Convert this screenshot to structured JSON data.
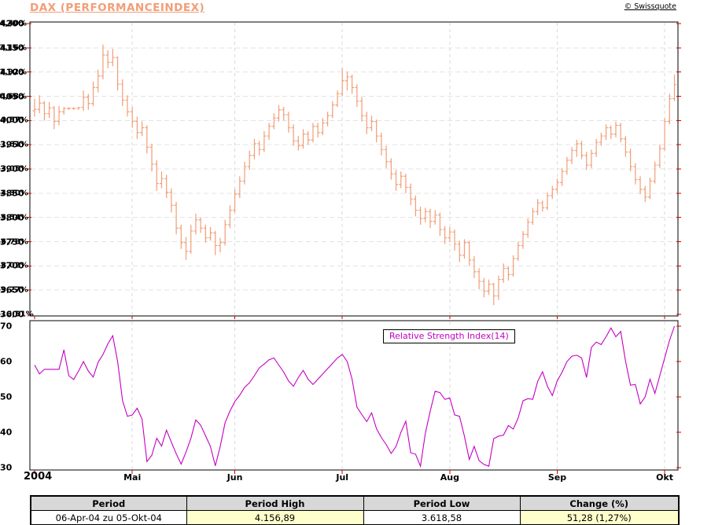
{
  "header": {
    "copyright": "© Swissquote"
  },
  "layout_colors": {
    "bar": "#F19E77",
    "title": "#F19E77",
    "rsi_line": "#C400C4",
    "axis_tick": "#D40000",
    "grid_horizontal": "#E3E3E3",
    "grid_vertical": "#D9D9D9",
    "table_header_bg": "#D8D8D8",
    "table_highlight_bg": "#FFFFCC"
  },
  "chart_data": [
    {
      "type": "bar",
      "subtype": "ohlc",
      "title": "DAX (PERFORMANCEINDEX)",
      "x_year": "2004",
      "x_months": [
        {
          "label": "Mai",
          "i": 20
        },
        {
          "label": "Jun",
          "i": 41
        },
        {
          "label": "Jul",
          "i": 63
        },
        {
          "label": "Aug",
          "i": 85
        },
        {
          "label": "Sep",
          "i": 107
        },
        {
          "label": "Okt",
          "i": 129
        }
      ],
      "ylabel_left_percent": [
        "4,40%",
        "3,16%",
        "1,92%",
        "0,68%",
        "-0,57%",
        "-1,81%",
        "-3,05%",
        "-4,30%",
        "-5,54%",
        "-6,78%",
        "-8,02%",
        "-9,27%",
        "-10,51%"
      ],
      "yticks_right": [
        4200,
        4150,
        4100,
        4050,
        4000,
        3950,
        3900,
        3850,
        3800,
        3750,
        3700,
        3650,
        3600
      ],
      "ylim": [
        3600,
        4200
      ],
      "grid": true,
      "bars_format": [
        "open",
        "high",
        "low",
        "close"
      ],
      "bars": [
        [
          4020,
          4045,
          4008,
          4023
        ],
        [
          4023,
          4052,
          4015,
          4036
        ],
        [
          4036,
          4040,
          4000,
          4014
        ],
        [
          4014,
          4038,
          4005,
          4026
        ],
        [
          4026,
          4030,
          3982,
          3998
        ],
        [
          3998,
          4030,
          3990,
          4018
        ],
        [
          4018,
          4028,
          4012,
          4025
        ],
        [
          4025,
          4027,
          4022,
          4025
        ],
        [
          4025,
          4027,
          4022,
          4025
        ],
        [
          4025,
          4028,
          4022,
          4027
        ],
        [
          4027,
          4062,
          4020,
          4048
        ],
        [
          4048,
          4055,
          4022,
          4035
        ],
        [
          4035,
          4080,
          4030,
          4068
        ],
        [
          4068,
          4105,
          4058,
          4092
        ],
        [
          4092,
          4157,
          4085,
          4135
        ],
        [
          4135,
          4145,
          4108,
          4120
        ],
        [
          4120,
          4148,
          4112,
          4130
        ],
        [
          4130,
          4132,
          4062,
          4075
        ],
        [
          4075,
          4085,
          4030,
          4042
        ],
        [
          4042,
          4052,
          4008,
          4018
        ],
        [
          4018,
          4028,
          3985,
          3998
        ],
        [
          3998,
          4008,
          3962,
          3975
        ],
        [
          3975,
          3998,
          3968,
          3985
        ],
        [
          3985,
          3990,
          3932,
          3945
        ],
        [
          3945,
          3952,
          3895,
          3910
        ],
        [
          3910,
          3918,
          3855,
          3870
        ],
        [
          3870,
          3895,
          3860,
          3880
        ],
        [
          3880,
          3888,
          3840,
          3852
        ],
        [
          3852,
          3860,
          3810,
          3825
        ],
        [
          3825,
          3832,
          3765,
          3778
        ],
        [
          3778,
          3785,
          3735,
          3748
        ],
        [
          3748,
          3760,
          3712,
          3730
        ],
        [
          3730,
          3785,
          3725,
          3772
        ],
        [
          3772,
          3808,
          3765,
          3795
        ],
        [
          3795,
          3800,
          3768,
          3778
        ],
        [
          3778,
          3785,
          3748,
          3758
        ],
        [
          3758,
          3780,
          3752,
          3768
        ],
        [
          3768,
          3772,
          3722,
          3742
        ],
        [
          3742,
          3758,
          3728,
          3748
        ],
        [
          3748,
          3795,
          3742,
          3785
        ],
        [
          3785,
          3825,
          3778,
          3815
        ],
        [
          3815,
          3858,
          3810,
          3848
        ],
        [
          3848,
          3885,
          3840,
          3875
        ],
        [
          3875,
          3915,
          3868,
          3905
        ],
        [
          3905,
          3938,
          3898,
          3928
        ],
        [
          3928,
          3962,
          3920,
          3952
        ],
        [
          3952,
          3958,
          3928,
          3940
        ],
        [
          3940,
          3978,
          3935,
          3968
        ],
        [
          3968,
          3995,
          3960,
          3988
        ],
        [
          3988,
          4015,
          3982,
          4005
        ],
        [
          4005,
          4032,
          3998,
          4022
        ],
        [
          4022,
          4028,
          4000,
          4012
        ],
        [
          4012,
          4018,
          3975,
          3985
        ],
        [
          3985,
          3992,
          3948,
          3958
        ],
        [
          3958,
          3968,
          3938,
          3948
        ],
        [
          3948,
          3982,
          3942,
          3972
        ],
        [
          3972,
          3978,
          3950,
          3960
        ],
        [
          3960,
          3995,
          3955,
          3988
        ],
        [
          3988,
          3995,
          3965,
          3975
        ],
        [
          3975,
          4005,
          3970,
          3995
        ],
        [
          3995,
          4018,
          3988,
          4010
        ],
        [
          4010,
          4040,
          4005,
          4032
        ],
        [
          4032,
          4062,
          4028,
          4055
        ],
        [
          4055,
          4108,
          4050,
          4082
        ],
        [
          4082,
          4101,
          4062,
          4090
        ],
        [
          4090,
          4095,
          4055,
          4068
        ],
        [
          4068,
          4075,
          4028,
          4040
        ],
        [
          4040,
          4048,
          3998,
          4010
        ],
        [
          4010,
          4018,
          3972,
          3985
        ],
        [
          3985,
          4010,
          3978,
          3998
        ],
        [
          3998,
          4002,
          3955,
          3968
        ],
        [
          3968,
          3975,
          3928,
          3940
        ],
        [
          3940,
          3948,
          3902,
          3915
        ],
        [
          3915,
          3922,
          3878,
          3890
        ],
        [
          3890,
          3898,
          3855,
          3868
        ],
        [
          3868,
          3895,
          3860,
          3885
        ],
        [
          3885,
          3890,
          3850,
          3862
        ],
        [
          3862,
          3870,
          3825,
          3838
        ],
        [
          3838,
          3845,
          3802,
          3815
        ],
        [
          3815,
          3822,
          3785,
          3798
        ],
        [
          3798,
          3820,
          3790,
          3812
        ],
        [
          3812,
          3818,
          3778,
          3792
        ],
        [
          3792,
          3815,
          3785,
          3805
        ],
        [
          3805,
          3810,
          3762,
          3775
        ],
        [
          3775,
          3782,
          3745,
          3758
        ],
        [
          3758,
          3780,
          3750,
          3770
        ],
        [
          3770,
          3775,
          3732,
          3745
        ],
        [
          3745,
          3752,
          3708,
          3722
        ],
        [
          3722,
          3755,
          3715,
          3748
        ],
        [
          3748,
          3752,
          3700,
          3712
        ],
        [
          3712,
          3720,
          3675,
          3688
        ],
        [
          3688,
          3695,
          3652,
          3668
        ],
        [
          3668,
          3675,
          3635,
          3648
        ],
        [
          3648,
          3672,
          3640,
          3662
        ],
        [
          3662,
          3665,
          3619,
          3638
        ],
        [
          3638,
          3680,
          3630,
          3672
        ],
        [
          3672,
          3705,
          3665,
          3695
        ],
        [
          3695,
          3700,
          3670,
          3682
        ],
        [
          3682,
          3722,
          3678,
          3715
        ],
        [
          3715,
          3750,
          3710,
          3742
        ],
        [
          3742,
          3772,
          3735,
          3765
        ],
        [
          3765,
          3798,
          3758,
          3790
        ],
        [
          3790,
          3820,
          3785,
          3812
        ],
        [
          3812,
          3838,
          3805,
          3830
        ],
        [
          3830,
          3835,
          3812,
          3820
        ],
        [
          3820,
          3852,
          3815,
          3845
        ],
        [
          3845,
          3865,
          3838,
          3858
        ],
        [
          3858,
          3880,
          3850,
          3872
        ],
        [
          3872,
          3902,
          3865,
          3895
        ],
        [
          3895,
          3925,
          3888,
          3918
        ],
        [
          3918,
          3945,
          3910,
          3938
        ],
        [
          3938,
          3960,
          3925,
          3952
        ],
        [
          3952,
          3958,
          3920,
          3928
        ],
        [
          3928,
          3935,
          3898,
          3908
        ],
        [
          3908,
          3940,
          3902,
          3932
        ],
        [
          3932,
          3962,
          3925,
          3955
        ],
        [
          3955,
          3975,
          3948,
          3968
        ],
        [
          3968,
          3992,
          3960,
          3985
        ],
        [
          3985,
          3990,
          3962,
          3972
        ],
        [
          3972,
          3998,
          3965,
          3990
        ],
        [
          3990,
          3995,
          3955,
          3962
        ],
        [
          3962,
          3968,
          3925,
          3935
        ],
        [
          3935,
          3942,
          3895,
          3905
        ],
        [
          3905,
          3912,
          3868,
          3878
        ],
        [
          3878,
          3885,
          3848,
          3858
        ],
        [
          3858,
          3865,
          3832,
          3842
        ],
        [
          3842,
          3882,
          3838,
          3875
        ],
        [
          3875,
          3915,
          3870,
          3908
        ],
        [
          3908,
          3950,
          3902,
          3942
        ],
        [
          3942,
          4005,
          3938,
          3998
        ],
        [
          3998,
          4055,
          3992,
          4045
        ],
        [
          4045,
          4095,
          4040,
          4074
        ]
      ]
    },
    {
      "type": "line",
      "name": "Relative Strength Index(14)",
      "yticks_right": [
        70,
        60,
        50,
        40,
        30
      ],
      "ylim": [
        30,
        70
      ],
      "grid": false,
      "values": [
        59,
        56.5,
        57.8,
        57.8,
        57.8,
        57.8,
        63.3,
        56,
        54.9,
        57.3,
        60,
        57.3,
        55.6,
        59.8,
        62,
        65,
        67.3,
        60,
        49,
        44.5,
        44.9,
        46.8,
        43.7,
        31.7,
        33.5,
        38.3,
        36.1,
        40.6,
        37.2,
        33.9,
        31,
        34.4,
        38.3,
        43.5,
        42,
        39,
        36,
        30.5,
        36,
        42.7,
        46,
        48.7,
        50.5,
        52.7,
        54,
        56,
        58.2,
        59.3,
        60.5,
        61,
        59,
        57,
        54.5,
        53,
        55.5,
        57.5,
        55,
        53.5,
        55,
        56.5,
        58,
        59.5,
        61,
        62,
        60,
        55,
        47.1,
        45,
        43,
        45.5,
        41,
        38.5,
        36.5,
        34,
        36,
        40,
        43.1,
        34.2,
        33.8,
        30.4,
        39.7,
        46,
        51.6,
        51.2,
        49.3,
        49.7,
        44.9,
        44.5,
        38.9,
        32.3,
        36,
        32,
        30.9,
        30.4,
        38.2,
        38.9,
        39.2,
        41.9,
        40.9,
        44,
        48.9,
        49.5,
        49.3,
        54.4,
        57.1,
        53,
        50.4,
        54.5,
        57,
        60,
        61.5,
        61.8,
        61,
        55.5,
        64,
        65.5,
        64.8,
        67,
        69.5,
        67,
        68.5,
        60,
        53.3,
        53.5,
        48,
        50,
        55,
        51,
        56,
        61,
        66,
        70
      ]
    }
  ],
  "table": {
    "headers": [
      "Period",
      "Period High",
      "Period Low",
      "Change (%)"
    ],
    "values": [
      "06-Apr-04 zu 05-Okt-04",
      "4.156,89",
      "3.618,58",
      "51,28 (1,27%)"
    ]
  }
}
